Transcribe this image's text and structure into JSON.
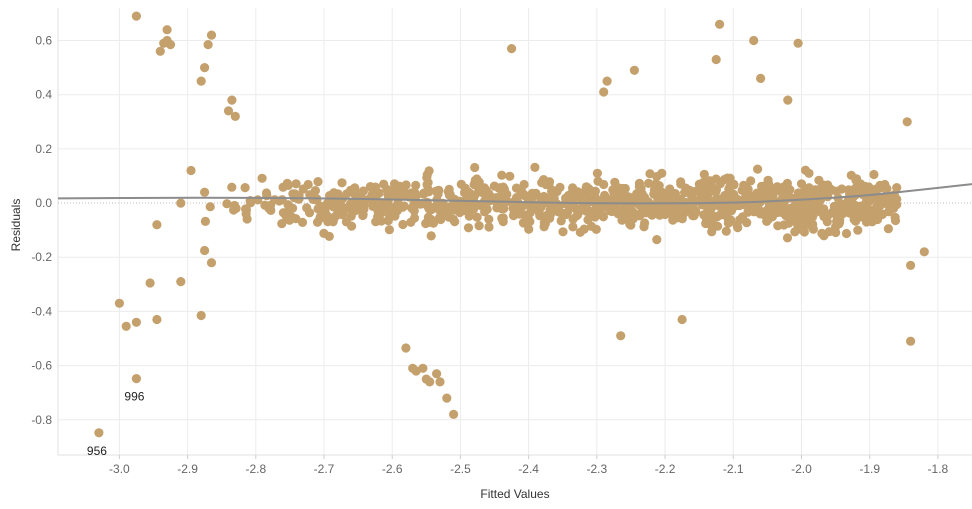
{
  "chart_data": {
    "type": "scatter",
    "xlabel": "Fitted Values",
    "ylabel": "Residuals",
    "xlim": [
      -3.09,
      -1.75
    ],
    "ylim": [
      -0.93,
      0.72
    ],
    "x_ticks": [
      -3.0,
      -2.9,
      -2.8,
      -2.7,
      -2.6,
      -2.5,
      -2.4,
      -2.3,
      -2.2,
      -2.1,
      -2.0,
      -1.9,
      -1.8
    ],
    "x_tick_labels": [
      "-3.0",
      "-2.9",
      "-2.8",
      "-2.7",
      "-2.6",
      "-2.5",
      "-2.4",
      "-2.3",
      "-2.2",
      "-2.1",
      "-2.0",
      "-1.9",
      "-1.8"
    ],
    "y_ticks": [
      0.6,
      0.4,
      0.2,
      0.0,
      -0.2,
      -0.4,
      -0.6,
      -0.8
    ],
    "y_tick_labels": [
      "0.6",
      "0.4",
      "0.2",
      "0.0",
      "-0.2",
      "-0.4",
      "-0.6",
      "-0.8"
    ],
    "grid": true,
    "zero_line": "dotted",
    "colors": {
      "points": "#c4a06d",
      "trend": "#8c8c8c",
      "grid": "#ececec",
      "zero_line": "#bdbdbd"
    },
    "trend_line": {
      "type": "smooth",
      "x": [
        -3.09,
        -2.9,
        -2.7,
        -2.5,
        -2.3,
        -2.1,
        -2.0,
        -1.9,
        -1.75
      ],
      "y": [
        0.017,
        0.02,
        0.018,
        0.008,
        -0.002,
        0.0,
        0.012,
        0.028,
        0.07
      ]
    },
    "labeled_points": [
      {
        "x": -3.03,
        "y": -0.848,
        "label": "956"
      },
      {
        "x": -2.975,
        "y": -0.648,
        "label": "996"
      }
    ],
    "notable_points": [
      {
        "x": -2.975,
        "y": 0.69
      },
      {
        "x": -2.93,
        "y": 0.64
      },
      {
        "x": -2.93,
        "y": 0.6
      },
      {
        "x": -2.935,
        "y": 0.59
      },
      {
        "x": -2.925,
        "y": 0.585
      },
      {
        "x": -2.94,
        "y": 0.56
      },
      {
        "x": -2.865,
        "y": 0.62
      },
      {
        "x": -2.87,
        "y": 0.585
      },
      {
        "x": -2.875,
        "y": 0.5
      },
      {
        "x": -2.88,
        "y": 0.45
      },
      {
        "x": -2.84,
        "y": 0.34
      },
      {
        "x": -2.835,
        "y": 0.38
      },
      {
        "x": -2.83,
        "y": 0.32
      },
      {
        "x": -2.425,
        "y": 0.57
      },
      {
        "x": -2.12,
        "y": 0.66
      },
      {
        "x": -2.07,
        "y": 0.6
      },
      {
        "x": -2.005,
        "y": 0.59
      },
      {
        "x": -2.125,
        "y": 0.53
      },
      {
        "x": -3.0,
        "y": -0.37
      },
      {
        "x": -2.99,
        "y": -0.455
      },
      {
        "x": -2.975,
        "y": -0.44
      },
      {
        "x": -2.945,
        "y": -0.43
      },
      {
        "x": -2.955,
        "y": -0.295
      },
      {
        "x": -2.945,
        "y": -0.08
      },
      {
        "x": -2.91,
        "y": -0.29
      },
      {
        "x": -2.88,
        "y": -0.415
      },
      {
        "x": -2.875,
        "y": -0.175
      },
      {
        "x": -2.865,
        "y": -0.22
      },
      {
        "x": -2.91,
        "y": 0.0
      },
      {
        "x": -2.895,
        "y": 0.12
      },
      {
        "x": -2.875,
        "y": 0.04
      },
      {
        "x": -2.58,
        "y": -0.535
      },
      {
        "x": -2.57,
        "y": -0.61
      },
      {
        "x": -2.565,
        "y": -0.62
      },
      {
        "x": -2.555,
        "y": -0.61
      },
      {
        "x": -2.55,
        "y": -0.65
      },
      {
        "x": -2.545,
        "y": -0.66
      },
      {
        "x": -2.535,
        "y": -0.63
      },
      {
        "x": -2.52,
        "y": -0.72
      },
      {
        "x": -2.51,
        "y": -0.78
      },
      {
        "x": -2.53,
        "y": -0.66
      },
      {
        "x": -1.84,
        "y": -0.51
      },
      {
        "x": -1.82,
        "y": -0.18
      },
      {
        "x": -1.84,
        "y": -0.23
      },
      {
        "x": -1.845,
        "y": 0.3
      },
      {
        "x": -2.175,
        "y": -0.43
      },
      {
        "x": -2.265,
        "y": -0.49
      },
      {
        "x": -2.29,
        "y": 0.41
      },
      {
        "x": -2.245,
        "y": 0.49
      },
      {
        "x": -2.285,
        "y": 0.45
      },
      {
        "x": -2.06,
        "y": 0.46
      },
      {
        "x": -2.02,
        "y": 0.38
      }
    ],
    "cluster_extent": {
      "x_min": -2.88,
      "x_max": -1.86,
      "y_min": -0.46,
      "y_max": 0.42
    }
  }
}
